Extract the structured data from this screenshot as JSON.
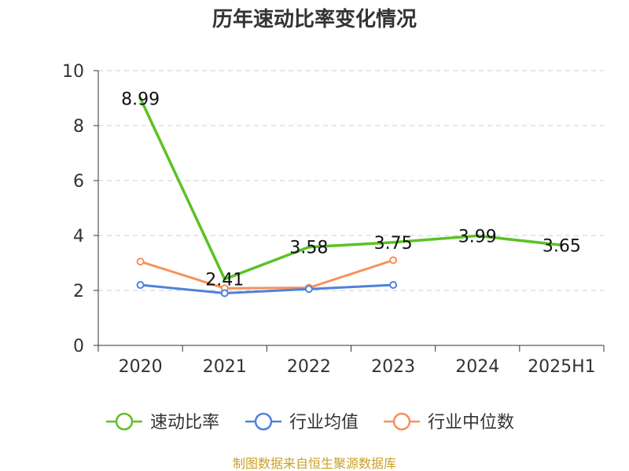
{
  "chart_data": {
    "type": "line",
    "title": "历年速动比率变化情况",
    "categories": [
      "2020",
      "2021",
      "2022",
      "2023",
      "2024",
      "2025H1"
    ],
    "ylim": [
      0,
      10
    ],
    "yticks": [
      0,
      2,
      4,
      6,
      8,
      10
    ],
    "grid": true,
    "legend_position": "bottom",
    "series": [
      {
        "name": "速动比率",
        "color": "#5bc225",
        "values": [
          8.99,
          2.41,
          3.58,
          3.75,
          3.99,
          3.65
        ],
        "data_labels": [
          "8.99",
          "2.41",
          "3.58",
          "3.75",
          "3.99",
          "3.65"
        ]
      },
      {
        "name": "行业均值",
        "color": "#4f81dd",
        "values": [
          2.2,
          1.9,
          2.05,
          2.2,
          null,
          null
        ]
      },
      {
        "name": "行业中位数",
        "color": "#f79059",
        "values": [
          3.05,
          2.08,
          2.1,
          3.1,
          null,
          null
        ]
      }
    ]
  },
  "footer": {
    "source": "制图数据来自恒生聚源数据库"
  }
}
